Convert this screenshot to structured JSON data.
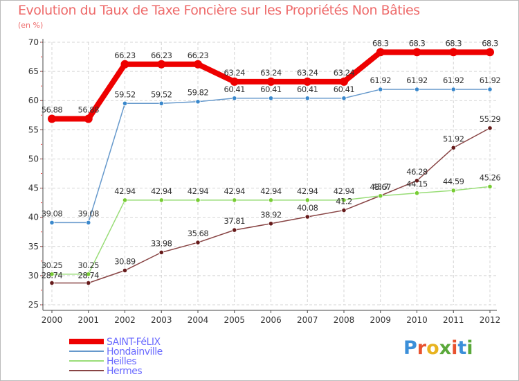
{
  "title": "Evolution du Taux de Taxe Foncière sur les Propriétés Non Bâties",
  "unit_label": "(en %)",
  "logo": {
    "letters": [
      "P",
      "r",
      "o",
      "x",
      "i",
      "t",
      "i"
    ],
    "colors": [
      "#3b8fd9",
      "#e8522f",
      "#e8b320",
      "#5aa83a",
      "#e8522f",
      "#3b8fd9",
      "#5aa83a"
    ]
  },
  "chart_data": {
    "type": "line",
    "title": "Evolution du Taux de Taxe Foncière sur les Propriétés Non Bâties",
    "ylabel": "(en %)",
    "xlabel": "",
    "categories": [
      "2000",
      "2001",
      "2002",
      "2003",
      "2004",
      "2005",
      "2006",
      "2007",
      "2008",
      "2009",
      "2010",
      "2011",
      "2012"
    ],
    "ylim": [
      25,
      70
    ],
    "yticks": [
      25,
      30,
      35,
      40,
      45,
      50,
      55,
      60,
      65,
      70
    ],
    "grid": true,
    "legend_position": "bottom-left",
    "series": [
      {
        "name": "SAINT-FéLIX",
        "color": "#ee0000",
        "legend_color": "#6a6aff",
        "width": 8,
        "values": [
          56.88,
          56.88,
          66.23,
          66.23,
          66.23,
          63.24,
          63.24,
          63.24,
          63.24,
          68.3,
          68.3,
          68.3,
          68.3
        ],
        "labels": [
          "56.88",
          "56.88",
          "66.23",
          "66.23",
          "66.23",
          "63.24",
          "63.24",
          "63.24",
          "63.24",
          "68.3",
          "68.3",
          "68.3",
          "68.3"
        ]
      },
      {
        "name": "Hondainville",
        "color": "#6699cc",
        "dot": "#3a88cc",
        "legend_color": "#6a6aff",
        "width": 1.5,
        "values": [
          39.08,
          39.08,
          59.52,
          59.52,
          59.82,
          60.41,
          60.41,
          60.41,
          60.41,
          61.92,
          61.92,
          61.92,
          61.92
        ],
        "labels": [
          "39.08",
          "39.08",
          "59.52",
          "59.52",
          "59.82",
          "60.41",
          "60.41",
          "60.41",
          "60.41",
          "61.92",
          "61.92",
          "61.92",
          "61.92"
        ]
      },
      {
        "name": "Heilles",
        "color": "#99dd77",
        "dot": "#77cc33",
        "legend_color": "#6a6aff",
        "width": 1.5,
        "values": [
          30.25,
          30.25,
          42.94,
          42.94,
          42.94,
          42.94,
          42.94,
          42.94,
          42.94,
          43.67,
          44.15,
          44.59,
          45.26
        ],
        "labels": [
          "30.25",
          "30.25",
          "42.94",
          "42.94",
          "42.94",
          "42.94",
          "42.94",
          "42.94",
          "42.94",
          "43.67",
          "44.15",
          "44.59",
          "45.26"
        ]
      },
      {
        "name": "Hermes",
        "color": "#884444",
        "dot": "#661a1a",
        "legend_color": "#6a6aff",
        "width": 1.5,
        "values": [
          28.74,
          28.74,
          30.89,
          33.98,
          35.68,
          37.81,
          38.92,
          40.08,
          41.2,
          43.7,
          46.28,
          51.92,
          55.29
        ],
        "labels": [
          "28.74",
          "28.74",
          "30.89",
          "33.98",
          "35.68",
          "37.81",
          "38.92",
          "40.08",
          "41.2",
          "43.7",
          "46.28",
          "51.92",
          "55.29"
        ]
      }
    ]
  }
}
